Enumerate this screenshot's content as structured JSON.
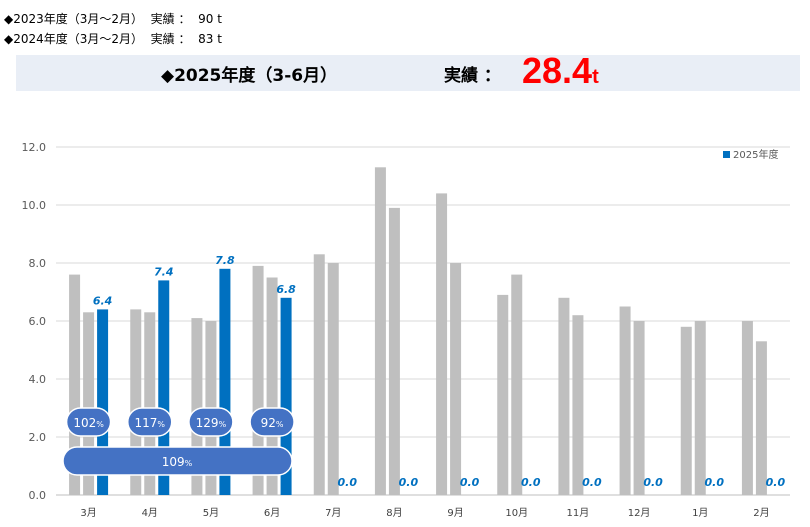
{
  "header": {
    "line1": "◆2023年度（3月～2月）  実績 ：  90 t",
    "line2": "◆2024年度（3月～2月）  実績 ：  83 t"
  },
  "banner": {
    "title": "◆2025年度（3-6月）",
    "result_label": "実績 ：",
    "result_value": "28.4",
    "result_unit": "t"
  },
  "colors": {
    "fy2023": "#bfbfbf",
    "fy2024": "#bfbfbf",
    "fy2025": "#0070c0",
    "badge": "#4472c4",
    "value_red": "#ff0000"
  },
  "chart_data": {
    "type": "bar",
    "categories": [
      "3月",
      "4月",
      "5月",
      "6月",
      "7月",
      "8月",
      "9月",
      "10月",
      "11月",
      "12月",
      "1月",
      "2月"
    ],
    "series": [
      {
        "values": [
          7.6,
          6.4,
          6.1,
          7.9,
          8.3,
          11.3,
          10.4,
          6.9,
          6.8,
          6.5,
          5.8,
          6.0
        ]
      },
      {
        "values": [
          6.3,
          6.3,
          6.0,
          7.5,
          8.0,
          9.9,
          8.0,
          7.6,
          6.2,
          6.0,
          6.0,
          5.3
        ]
      },
      {
        "name": "2025年度",
        "values": [
          6.4,
          7.4,
          7.8,
          6.8,
          0.0,
          0.0,
          0.0,
          0.0,
          0.0,
          0.0,
          0.0,
          0.0
        ]
      }
    ],
    "data_labels": [
      "6.4",
      "7.4",
      "7.8",
      "6.8",
      "0.0",
      "0.0",
      "0.0",
      "0.0",
      "0.0",
      "0.0",
      "0.0",
      "0.0"
    ],
    "ratio_badges": [
      {
        "category": "3月",
        "value": "102",
        "unit": "%"
      },
      {
        "category": "4月",
        "value": "117",
        "unit": "%"
      },
      {
        "category": "5月",
        "value": "129",
        "unit": "%"
      },
      {
        "category": "6月",
        "value": "92",
        "unit": "%"
      }
    ],
    "total_badge": {
      "value": "109",
      "unit": "%"
    },
    "ylim": [
      0,
      12
    ],
    "yticks": [
      "0.0",
      "2.0",
      "4.0",
      "6.0",
      "8.0",
      "10.0",
      "12.0"
    ],
    "grid": true,
    "legend_position": "top-right"
  }
}
